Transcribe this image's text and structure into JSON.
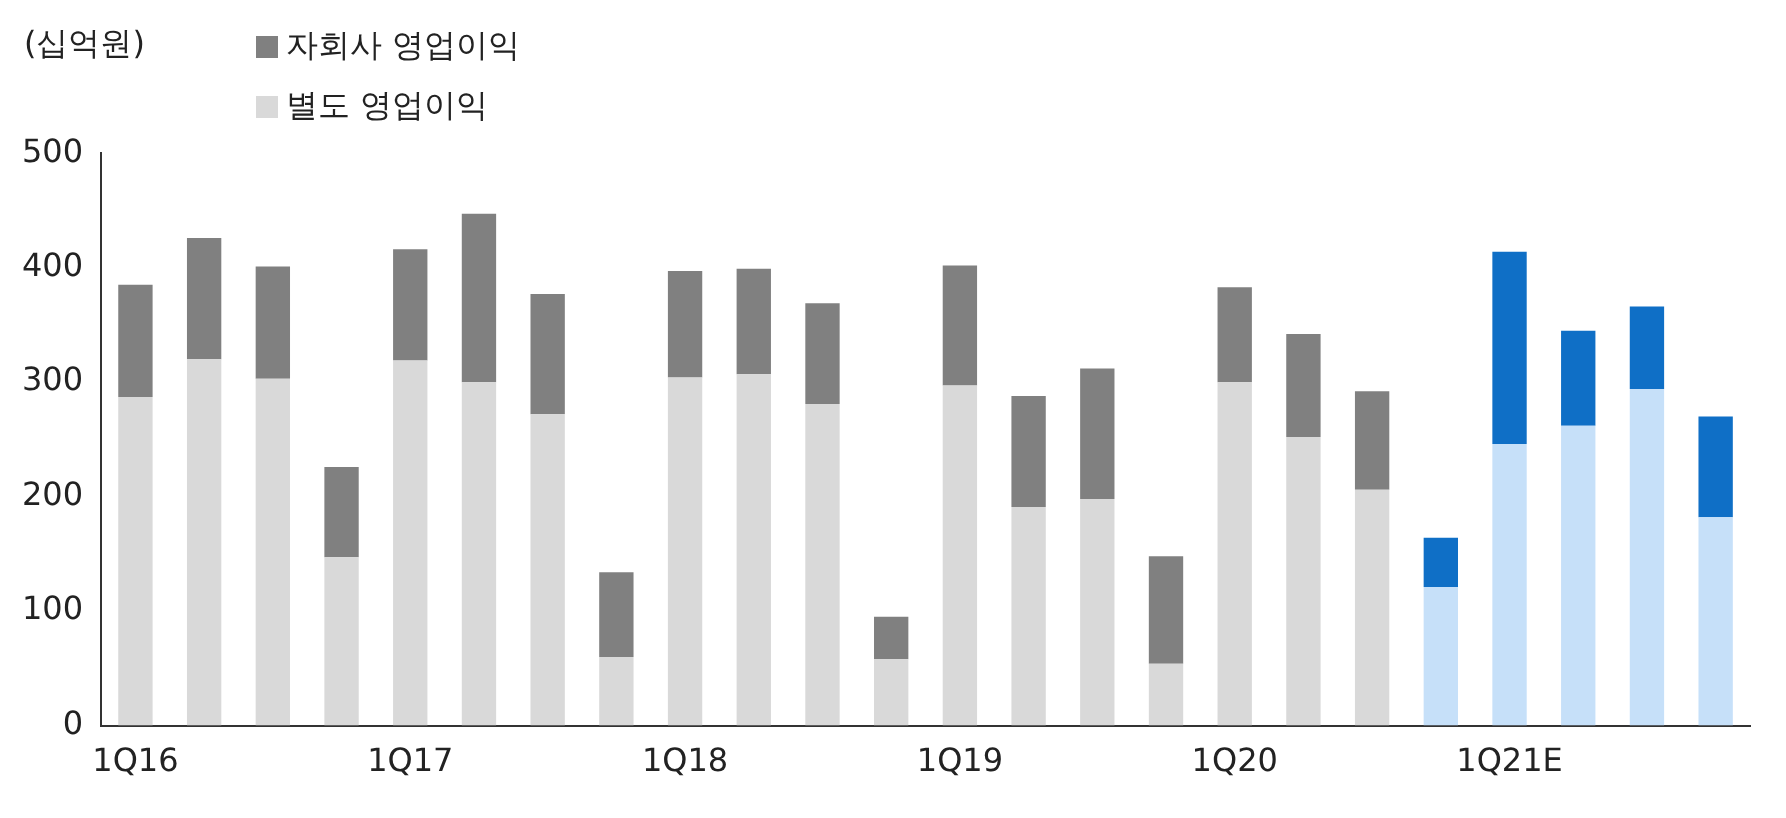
{
  "chart_data": {
    "type": "bar",
    "stacked": true,
    "ylabel": "(십억원)",
    "categories": [
      "1Q16",
      null,
      null,
      null,
      "1Q17",
      null,
      null,
      null,
      "1Q18",
      null,
      null,
      null,
      "1Q19",
      null,
      null,
      null,
      "1Q20",
      null,
      null,
      null,
      "1Q21E",
      null,
      null,
      null
    ],
    "series": [
      {
        "name": "별도 영업이익",
        "color": "#d9d9d9",
        "colors": [
          "#d9d9d9",
          "#d9d9d9",
          "#d9d9d9",
          "#d9d9d9",
          "#d9d9d9",
          "#d9d9d9",
          "#d9d9d9",
          "#d9d9d9",
          "#d9d9d9",
          "#d9d9d9",
          "#d9d9d9",
          "#d9d9d9",
          "#d9d9d9",
          "#d9d9d9",
          "#d9d9d9",
          "#d9d9d9",
          "#d9d9d9",
          "#d9d9d9",
          "#d9d9d9",
          "#c6e0f9",
          "#c6e0f9",
          "#c6e0f9",
          "#c6e0f9",
          "#c6e0f9"
        ],
        "values": [
          287,
          320,
          303,
          147,
          319,
          300,
          272,
          60,
          304,
          307,
          281,
          58,
          297,
          191,
          198,
          54,
          300,
          252,
          206,
          121,
          246,
          262,
          294,
          182
        ]
      },
      {
        "name": "자회사 영업이익",
        "color": "#808080",
        "colors": [
          "#808080",
          "#808080",
          "#808080",
          "#808080",
          "#808080",
          "#808080",
          "#808080",
          "#808080",
          "#808080",
          "#808080",
          "#808080",
          "#808080",
          "#808080",
          "#808080",
          "#808080",
          "#808080",
          "#808080",
          "#808080",
          "#808080",
          "#0f6fc6",
          "#0f6fc6",
          "#0f6fc6",
          "#0f6fc6",
          "#0f6fc6"
        ],
        "values": [
          98,
          106,
          98,
          79,
          97,
          147,
          105,
          74,
          93,
          92,
          88,
          37,
          105,
          97,
          114,
          94,
          83,
          90,
          86,
          43,
          168,
          83,
          72,
          88
        ]
      }
    ],
    "ylim": [
      0,
      500
    ],
    "yticks": [
      0,
      100,
      200,
      300,
      400,
      500
    ],
    "grid": false,
    "legend": "top left"
  }
}
